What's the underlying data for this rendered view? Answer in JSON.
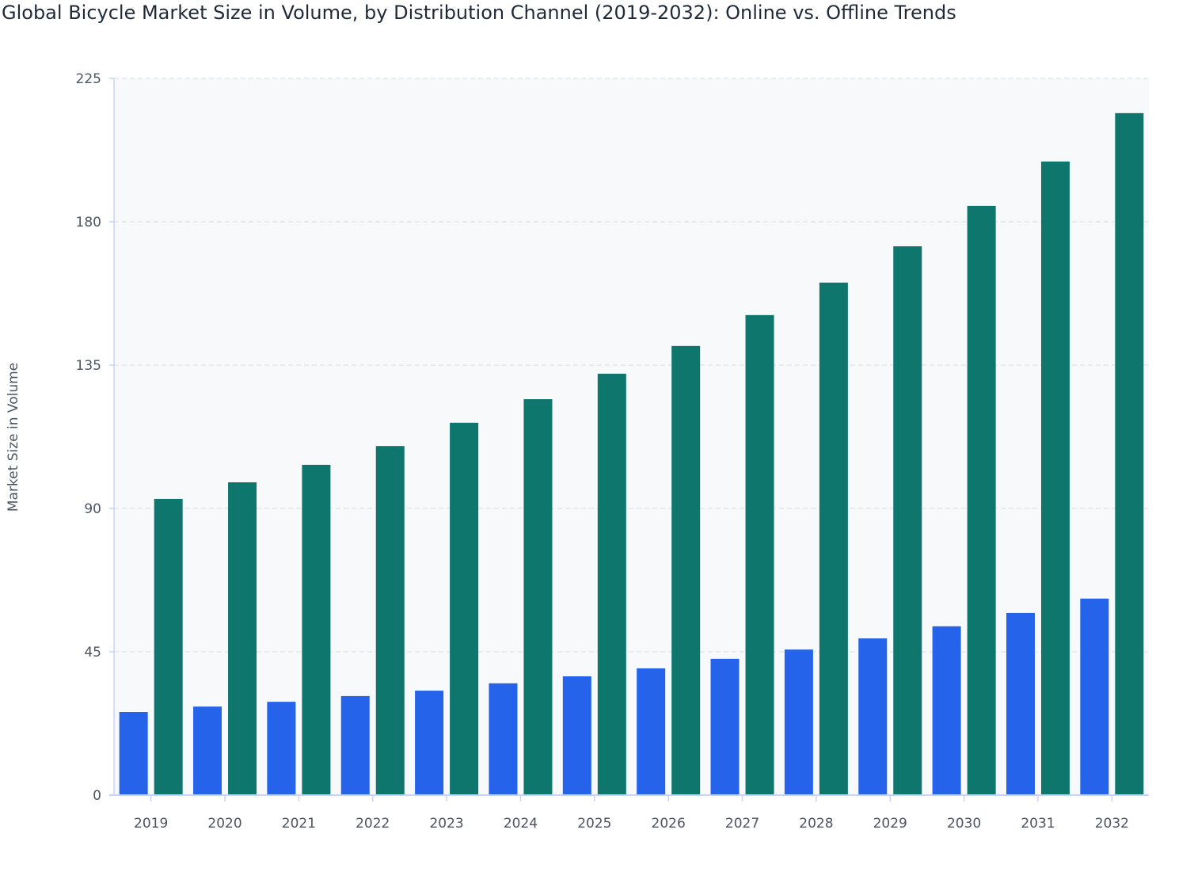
{
  "chart_data": {
    "type": "bar",
    "title": "Global Bicycle Market Size in Volume, by Distribution Channel (2019-2032): Online vs. Offline Trends",
    "xlabel": "",
    "ylabel": "Market Size in Volume",
    "ylim": [
      0,
      225
    ],
    "yticks": [
      "0",
      "45",
      "90",
      "135",
      "180",
      "225"
    ],
    "grid": true,
    "categories": [
      "2019",
      "2020",
      "2021",
      "2022",
      "2023",
      "2024",
      "2025",
      "2026",
      "2027",
      "2028",
      "2029",
      "2030",
      "2031",
      "2032"
    ],
    "series": [
      {
        "color": "#2563eb",
        "values": [
          26.1,
          27.8,
          29.3,
          31.1,
          32.8,
          35.1,
          37.3,
          39.8,
          42.8,
          45.7,
          49.2,
          53.0,
          57.2,
          61.7
        ]
      },
      {
        "color": "#0f766e",
        "values": [
          93.0,
          98.2,
          103.7,
          109.6,
          116.9,
          124.3,
          132.3,
          141.0,
          150.7,
          160.9,
          172.3,
          185.0,
          198.9,
          214.1
        ]
      }
    ]
  }
}
